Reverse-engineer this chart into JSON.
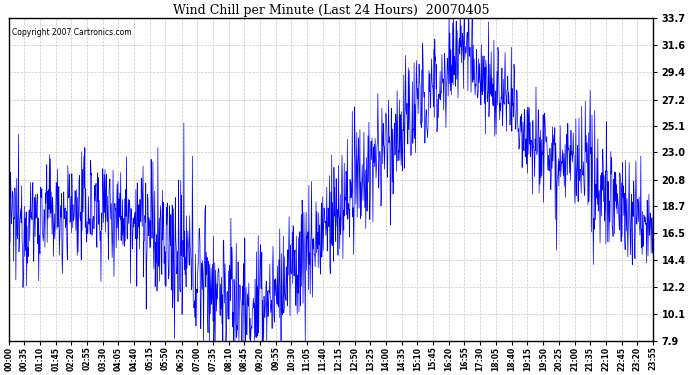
{
  "title": "Wind Chill per Minute (Last 24 Hours)  20070405",
  "copyright_text": "Copyright 2007 Cartronics.com",
  "line_color": "#0000FF",
  "background_color": "#FFFFFF",
  "plot_bg_color": "#FFFFFF",
  "grid_color": "#BBBBBB",
  "grid_style": "--",
  "yticks": [
    7.9,
    10.1,
    12.2,
    14.4,
    16.5,
    18.7,
    20.8,
    23.0,
    25.1,
    27.2,
    29.4,
    31.6,
    33.7
  ],
  "ylim": [
    7.9,
    33.7
  ],
  "xtick_labels": [
    "00:00",
    "00:35",
    "01:10",
    "01:45",
    "02:20",
    "02:55",
    "03:30",
    "04:05",
    "04:40",
    "05:15",
    "05:50",
    "06:25",
    "07:00",
    "07:35",
    "08:10",
    "08:45",
    "09:20",
    "09:55",
    "10:30",
    "11:05",
    "11:40",
    "12:15",
    "12:50",
    "13:25",
    "14:00",
    "14:35",
    "15:10",
    "15:45",
    "16:20",
    "16:55",
    "17:30",
    "18:05",
    "18:40",
    "19:15",
    "19:50",
    "20:25",
    "21:00",
    "21:35",
    "22:10",
    "22:45",
    "23:20",
    "23:55"
  ],
  "seed": 12345,
  "figwidth": 6.9,
  "figheight": 3.75,
  "dpi": 100
}
